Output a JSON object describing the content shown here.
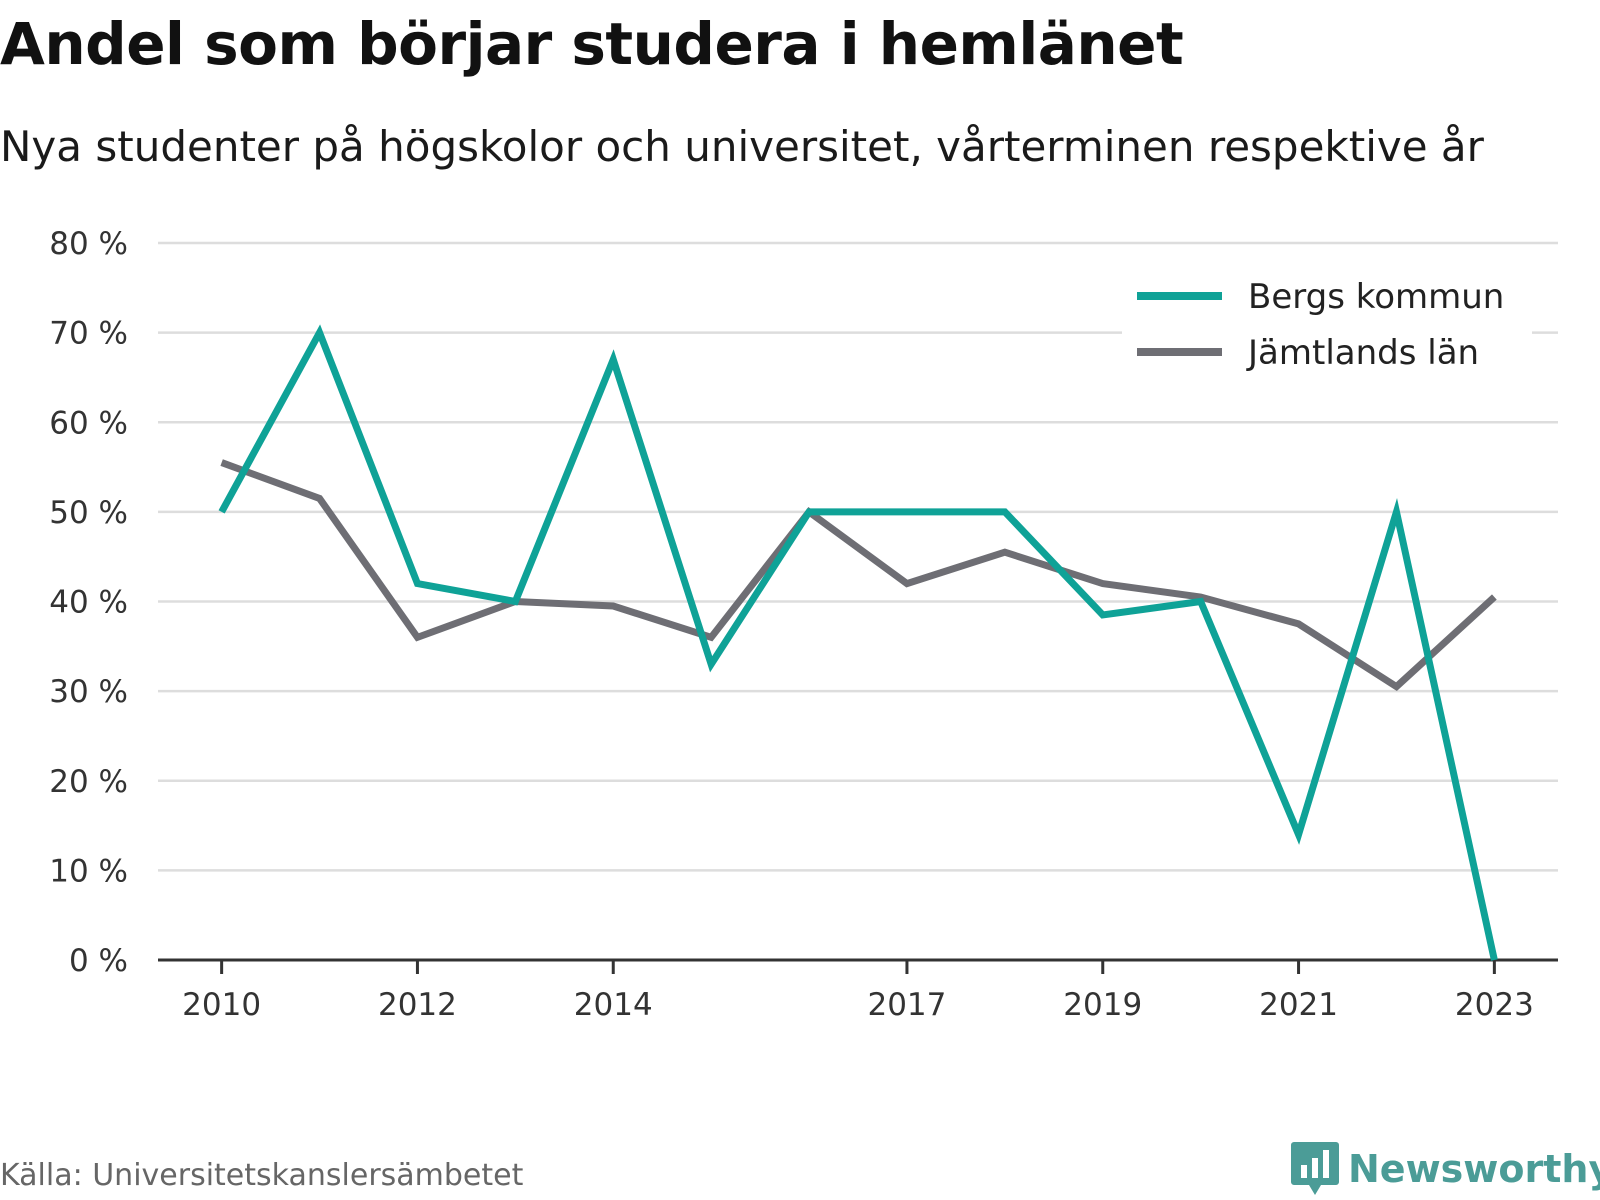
{
  "header": {
    "title": "Andel som börjar studera i hemlänet",
    "subtitle": "Nya studenter på högskolor och universitet, vårterminen respektive år"
  },
  "footer": {
    "source": "Källa: Universitetskanslersämbetet",
    "brand": "Newsworthy",
    "brand_icon": "bar-chart-speech-bubble-icon"
  },
  "colors": {
    "bergs": "#0fa297",
    "jamtland": "#6e6e74",
    "grid": "#dddddd",
    "brand": "#4b9c97"
  },
  "chart_data": {
    "type": "line",
    "x": [
      2010,
      2011,
      2012,
      2013,
      2014,
      2015,
      2016,
      2017,
      2018,
      2019,
      2020,
      2021,
      2022,
      2023
    ],
    "series": [
      {
        "name": "Bergs kommun",
        "values": [
          50,
          70,
          42,
          40,
          67,
          33,
          50,
          50,
          50,
          38.5,
          40,
          14,
          50,
          0
        ]
      },
      {
        "name": "Jämtlands län",
        "values": [
          55.5,
          51.5,
          36,
          40,
          39.5,
          36,
          50,
          42,
          45.5,
          42,
          40.5,
          37.5,
          30.5,
          40.5
        ]
      }
    ],
    "xticks": [
      "2010",
      "2012",
      "2014",
      "2017",
      "2019",
      "2021",
      "2023"
    ],
    "yticks": [
      "0 %",
      "10 %",
      "20 %",
      "30 %",
      "40 %",
      "50 %",
      "60 %",
      "70 %",
      "80 %"
    ],
    "ylim": [
      0,
      80
    ],
    "xlim": [
      2009.35,
      2023.65
    ],
    "grid": true,
    "legend": "top-right"
  }
}
